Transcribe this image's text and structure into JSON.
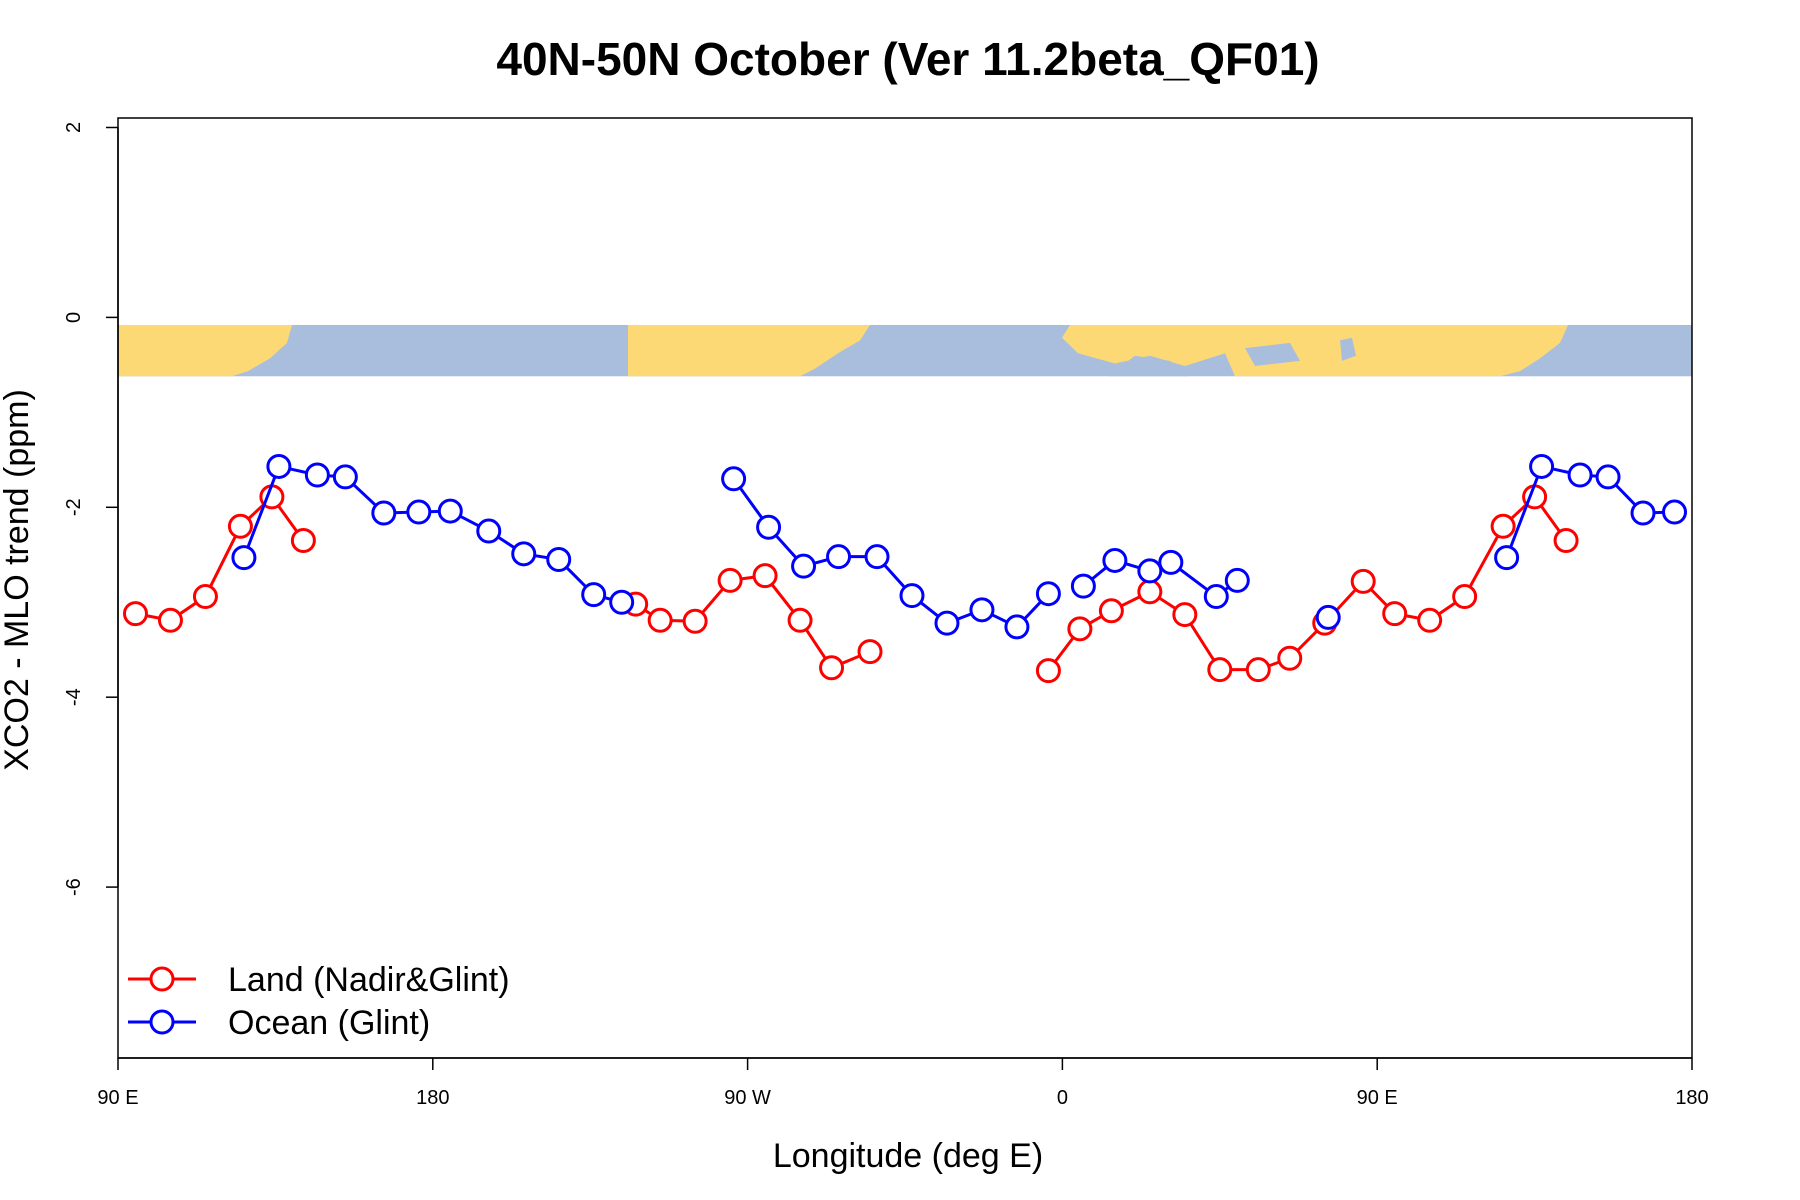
{
  "chart_data": {
    "type": "line",
    "title": "40N-50N October (Ver 11.2beta_QF01)",
    "xlabel": "Longitude (deg E)",
    "ylabel": "XCO2 - MLO trend (ppm)",
    "xlim": [
      90,
      540
    ],
    "ylim": [
      -7.8,
      2.1
    ],
    "x_ticks": [
      {
        "value": 90,
        "label": "90 E"
      },
      {
        "value": 180,
        "label": "180"
      },
      {
        "value": 270,
        "label": "90 W"
      },
      {
        "value": 360,
        "label": "0"
      },
      {
        "value": 450,
        "label": "90 E"
      },
      {
        "value": 540,
        "label": "180"
      }
    ],
    "y_ticks": [
      {
        "value": 2,
        "label": "2"
      },
      {
        "value": 0,
        "label": "0"
      },
      {
        "value": -2,
        "label": "-2"
      },
      {
        "value": -4,
        "label": "-4"
      },
      {
        "value": -6,
        "label": "-6"
      }
    ],
    "map_band": {
      "y_top": -0.08,
      "y_bottom": -0.62,
      "land_color": "#FDD976",
      "ocean_color": "#A9BEDD"
    },
    "series": [
      {
        "name": "Land (Nadir&Glint)",
        "color": "#FF0000",
        "segments": [
          [
            [
              95,
              -3.12
            ],
            [
              105,
              -3.19
            ],
            [
              115,
              -2.94
            ],
            [
              125,
              -2.2
            ],
            [
              134,
              -1.89
            ],
            [
              143,
              -2.35
            ]
          ],
          [
            [
              238,
              -3.02
            ],
            [
              245,
              -3.19
            ],
            [
              255,
              -3.2
            ],
            [
              265,
              -2.77
            ],
            [
              275,
              -2.72
            ],
            [
              285,
              -3.19
            ],
            [
              294,
              -3.69
            ],
            [
              305,
              -3.52
            ]
          ],
          [
            [
              356,
              -3.72
            ],
            [
              365,
              -3.28
            ],
            [
              374,
              -3.09
            ],
            [
              385,
              -2.89
            ],
            [
              395,
              -3.13
            ],
            [
              405,
              -3.71
            ],
            [
              416,
              -3.71
            ],
            [
              425,
              -3.59
            ],
            [
              435,
              -3.22
            ],
            [
              446,
              -2.78
            ],
            [
              455,
              -3.12
            ],
            [
              465,
              -3.19
            ],
            [
              475,
              -2.94
            ],
            [
              486,
              -2.2
            ],
            [
              495,
              -1.89
            ],
            [
              504,
              -2.35
            ]
          ]
        ]
      },
      {
        "name": "Ocean (Glint)",
        "color": "#0000FF",
        "segments": [
          [
            [
              126,
              -2.53
            ],
            [
              136,
              -1.57
            ],
            [
              147,
              -1.66
            ],
            [
              155,
              -1.68
            ],
            [
              166,
              -2.06
            ],
            [
              176,
              -2.05
            ],
            [
              185,
              -2.04
            ],
            [
              196,
              -2.25
            ],
            [
              206,
              -2.49
            ],
            [
              216,
              -2.55
            ],
            [
              226,
              -2.92
            ],
            [
              234,
              -3.0
            ]
          ],
          [
            [
              266,
              -1.7
            ],
            [
              276,
              -2.21
            ],
            [
              286,
              -2.62
            ],
            [
              296,
              -2.52
            ],
            [
              307,
              -2.52
            ],
            [
              317,
              -2.93
            ],
            [
              327,
              -3.22
            ],
            [
              337,
              -3.08
            ],
            [
              347,
              -3.26
            ],
            [
              356,
              -2.91
            ]
          ],
          [
            [
              366,
              -2.83
            ],
            [
              375,
              -2.56
            ],
            [
              385,
              -2.67
            ],
            [
              391,
              -2.58
            ],
            [
              404,
              -2.94
            ],
            [
              410,
              -2.77
            ]
          ],
          [
            [
              436,
              -3.16
            ]
          ],
          [
            [
              487,
              -2.53
            ],
            [
              497,
              -1.57
            ],
            [
              508,
              -1.66
            ],
            [
              516,
              -1.68
            ],
            [
              526,
              -2.06
            ],
            [
              535,
              -2.05
            ]
          ]
        ]
      }
    ],
    "legend": {
      "position": "bottom-left"
    }
  }
}
